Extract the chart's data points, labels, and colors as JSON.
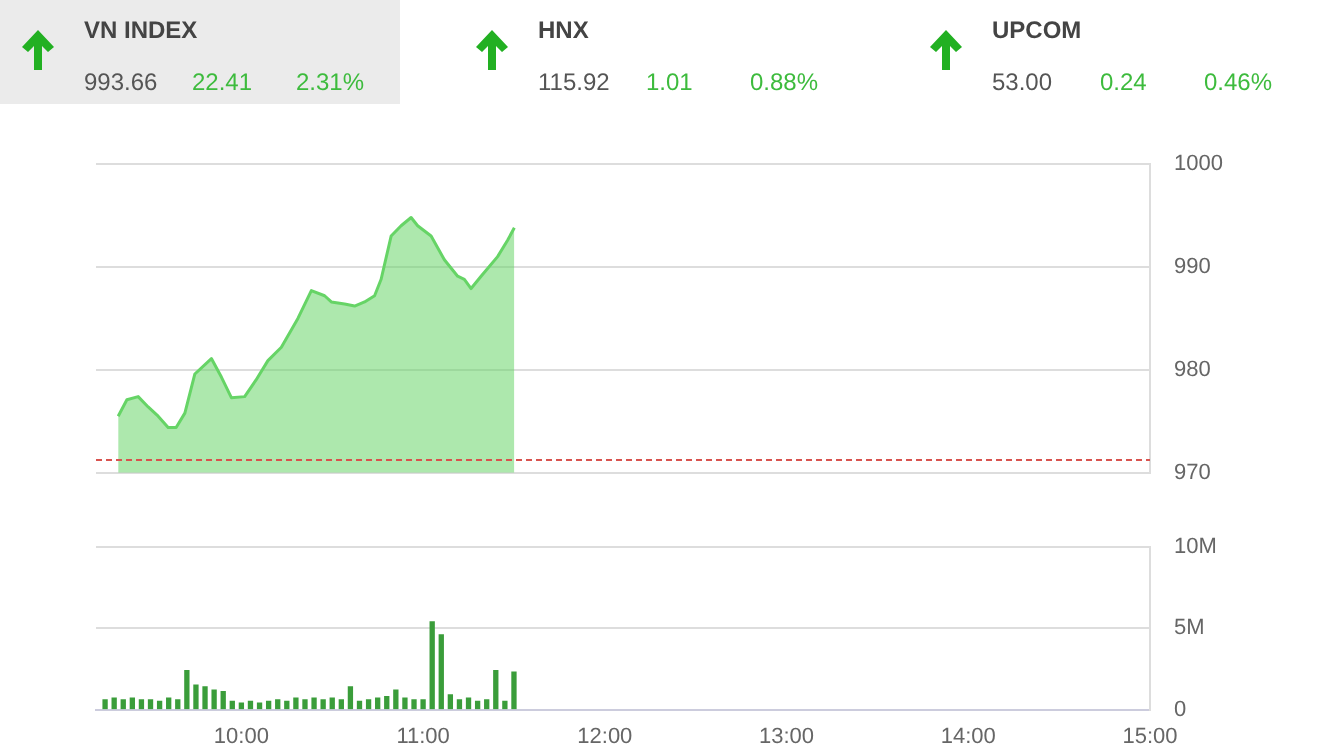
{
  "chart_data": [
    {
      "type": "other",
      "categories": [
        "VN INDEX",
        "HNX",
        "UPCOM"
      ],
      "series": [
        {
          "values": [
            993.66,
            115.92,
            53.0
          ],
          "value_labels": [
            "993.66",
            "115.92",
            "53.00"
          ]
        },
        {
          "color": "#3dbb3d",
          "values": [
            22.41,
            1.01,
            0.24
          ],
          "value_labels": [
            "22.41",
            "1.01",
            "0.24"
          ]
        },
        {
          "color": "#3dbb3d",
          "values": [
            2.31,
            0.88,
            0.46
          ],
          "value_labels": [
            "2.31%",
            "0.88%",
            "0.46%"
          ]
        }
      ]
    },
    {
      "type": "area",
      "color": "#66d466",
      "xlim": [
        9.2,
        15
      ],
      "ylim": [
        970,
        1000
      ],
      "yticks": [
        970,
        980,
        990,
        1000
      ],
      "grid": "y",
      "tick_labels": "y",
      "x": [
        9.322,
        9.37,
        9.432,
        9.487,
        9.542,
        9.597,
        9.641,
        9.689,
        9.744,
        9.835,
        9.89,
        9.945,
        10.018,
        10.08,
        10.146,
        10.22,
        10.311,
        10.385,
        10.458,
        10.495,
        10.568,
        10.623,
        10.678,
        10.733,
        10.769,
        10.824,
        10.879,
        10.934,
        10.97,
        11.044,
        11.117,
        11.19,
        11.227,
        11.264,
        11.319,
        11.41,
        11.465,
        11.502
      ],
      "values": [
        975.5,
        977.1,
        977.4,
        976.4,
        975.5,
        974.4,
        974.4,
        975.8,
        979.6,
        981.1,
        979.3,
        977.3,
        977.4,
        979.0,
        980.9,
        982.2,
        985.0,
        987.7,
        987.2,
        986.6,
        986.4,
        986.2,
        986.6,
        987.2,
        988.8,
        993.0,
        994.0,
        994.8,
        994.0,
        993.0,
        990.7,
        989.1,
        988.8,
        987.9,
        989.1,
        991.0,
        992.6,
        993.8
      ],
      "ref_lines": [
        {
          "axis": "y",
          "value": 971.25,
          "color": "#d9534f",
          "line_style": "dashed"
        }
      ]
    },
    {
      "type": "bar",
      "color": "#3a9d3a",
      "xlim": [
        9.2,
        15
      ],
      "ylim": [
        0,
        10
      ],
      "xticks": [
        {
          "value": 10,
          "label": "10:00"
        },
        {
          "value": 11,
          "label": "11:00"
        },
        {
          "value": 12,
          "label": "12:00"
        },
        {
          "value": 13,
          "label": "13:00"
        },
        {
          "value": 14,
          "label": "14:00"
        },
        {
          "value": 15,
          "label": "15:00"
        }
      ],
      "yticks": [
        0,
        {
          "value": 5,
          "label": "5M"
        },
        {
          "value": 10,
          "label": "10M"
        }
      ],
      "grid": "y",
      "x": [
        9.25,
        9.3,
        9.35,
        9.4,
        9.45,
        9.5,
        9.55,
        9.6,
        9.65,
        9.7,
        9.75,
        9.8,
        9.85,
        9.9,
        9.95,
        10,
        10.05,
        10.1,
        10.15,
        10.2,
        10.25,
        10.3,
        10.35,
        10.4,
        10.45,
        10.5,
        10.55,
        10.6,
        10.65,
        10.7,
        10.75,
        10.8,
        10.85,
        10.9,
        10.95,
        11,
        11.05,
        11.1,
        11.15,
        11.2,
        11.25,
        11.3,
        11.35,
        11.4,
        11.45,
        11.5
      ],
      "values": [
        0.6,
        0.7,
        0.6,
        0.7,
        0.6,
        0.6,
        0.5,
        0.7,
        0.6,
        2.4,
        1.5,
        1.4,
        1.2,
        1.1,
        0.5,
        0.4,
        0.5,
        0.4,
        0.5,
        0.6,
        0.5,
        0.7,
        0.6,
        0.7,
        0.6,
        0.7,
        0.6,
        1.4,
        0.5,
        0.6,
        0.7,
        0.8,
        1.2,
        0.7,
        0.6,
        0.6,
        5.4,
        4.6,
        0.9,
        0.6,
        0.7,
        0.5,
        0.6,
        2.4,
        0.5,
        2.3
      ]
    }
  ]
}
